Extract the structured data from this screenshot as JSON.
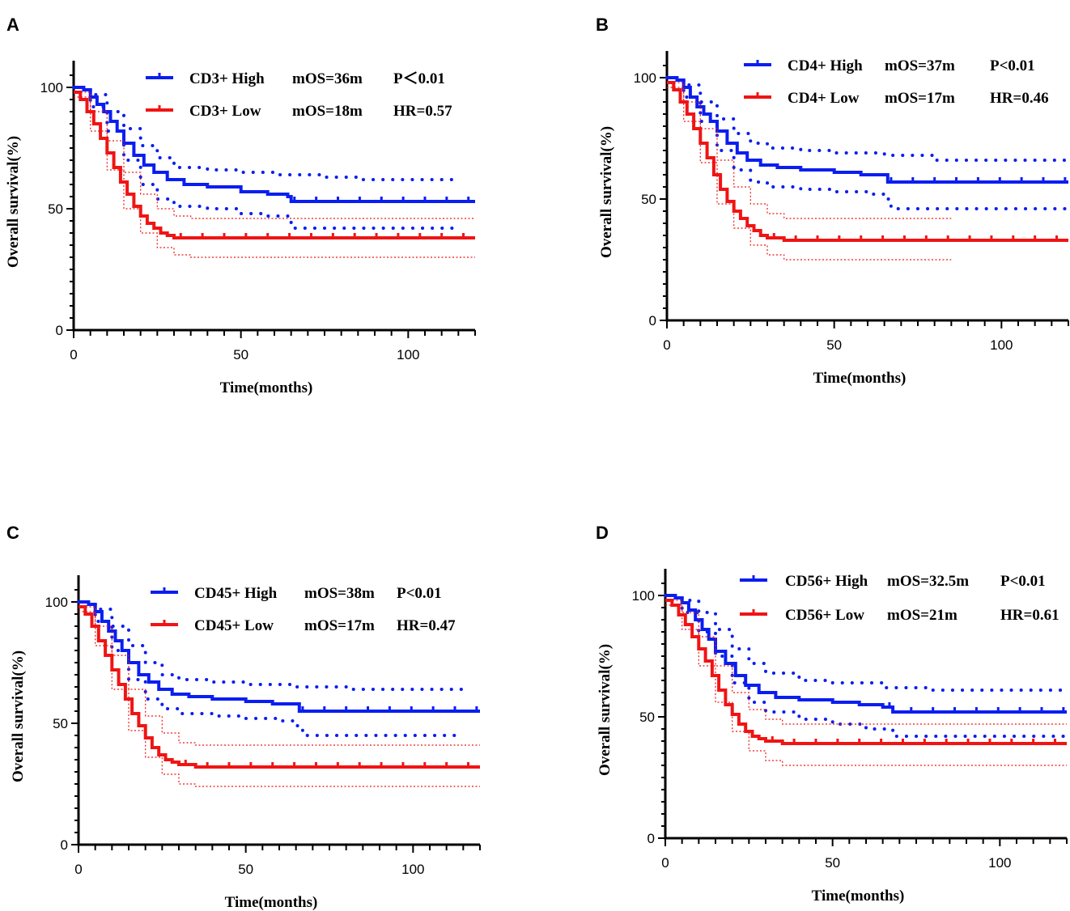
{
  "colors": {
    "high": "#0a1ef0",
    "low": "#f01414",
    "axis": "#000000"
  },
  "chart_data": [
    {
      "type": "line",
      "panel_label": "A",
      "xlabel": "Time(months)",
      "ylabel": "Overall survival(%)",
      "xlim": [
        0,
        120
      ],
      "ylim": [
        0,
        110
      ],
      "xticks": [
        "0",
        "50",
        "100"
      ],
      "xtick_values": [
        0,
        50,
        100
      ],
      "yticks": [
        "0",
        "50",
        "100"
      ],
      "ytick_values": [
        0,
        50,
        100
      ],
      "legend": [
        {
          "group": "high",
          "label": "CD3+ High",
          "stat1": "mOS=36m",
          "stat2": "P＜0.01"
        },
        {
          "group": "low",
          "label": "CD3+ Low",
          "stat1": "mOS=18m",
          "stat2": "HR=0.57"
        }
      ],
      "series": [
        {
          "name": "CD3+ High",
          "group": "high",
          "style": "solid",
          "x": [
            0,
            3,
            5,
            7,
            9,
            11,
            13,
            15,
            18,
            21,
            24,
            28,
            33,
            40,
            50,
            58,
            64,
            65,
            120
          ],
          "y": [
            100,
            99,
            96,
            93,
            90,
            86,
            82,
            77,
            72,
            68,
            65,
            62,
            60,
            59,
            57,
            56,
            55,
            53,
            53
          ]
        },
        {
          "name": "CD3+ High upper",
          "group": "high",
          "style": "ci",
          "x": [
            0,
            5,
            10,
            15,
            20,
            25,
            30,
            40,
            50,
            60,
            75,
            85,
            115
          ],
          "y": [
            100,
            97,
            90,
            83,
            76,
            71,
            67,
            66,
            65,
            64,
            63,
            62,
            62
          ]
        },
        {
          "name": "CD3+ High lower",
          "group": "high",
          "style": "ci",
          "x": [
            0,
            5,
            10,
            15,
            20,
            25,
            30,
            40,
            50,
            58,
            64,
            65,
            85,
            115
          ],
          "y": [
            100,
            92,
            82,
            70,
            60,
            54,
            51,
            50,
            48,
            47,
            46,
            42,
            42,
            42
          ]
        },
        {
          "name": "CD3+ Low",
          "group": "low",
          "style": "solid",
          "x": [
            0,
            2,
            4,
            6,
            8,
            10,
            12,
            14,
            16,
            18,
            20,
            22,
            24,
            26,
            28,
            30,
            35,
            120
          ],
          "y": [
            98,
            95,
            90,
            85,
            79,
            73,
            67,
            61,
            56,
            51,
            47,
            44,
            42,
            40,
            39,
            38,
            38,
            38
          ]
        },
        {
          "name": "CD3+ Low upper",
          "group": "low",
          "style": "ci",
          "x": [
            0,
            5,
            10,
            15,
            20,
            25,
            30,
            35,
            120
          ],
          "y": [
            98,
            90,
            78,
            65,
            56,
            50,
            47,
            46,
            46
          ]
        },
        {
          "name": "CD3+ Low lower",
          "group": "low",
          "style": "ci",
          "x": [
            0,
            5,
            10,
            15,
            20,
            25,
            30,
            35,
            120
          ],
          "y": [
            96,
            82,
            66,
            50,
            40,
            34,
            31,
            30,
            30
          ]
        }
      ]
    },
    {
      "type": "line",
      "panel_label": "B",
      "xlabel": "Time(months)",
      "ylabel": "Overall survival(%)",
      "xlim": [
        0,
        120
      ],
      "ylim": [
        0,
        110
      ],
      "xticks": [
        "0",
        "50",
        "100"
      ],
      "xtick_values": [
        0,
        50,
        100
      ],
      "yticks": [
        "0",
        "50",
        "100"
      ],
      "ytick_values": [
        0,
        50,
        100
      ],
      "legend": [
        {
          "group": "high",
          "label": "CD4+ High",
          "stat1": "mOS=37m",
          "stat2": "P<0.01"
        },
        {
          "group": "low",
          "label": "CD4+ Low",
          "stat1": "mOS=17m",
          "stat2": "HR=0.46"
        }
      ],
      "series": [
        {
          "name": "CD4+ High",
          "group": "high",
          "style": "solid",
          "x": [
            0,
            3,
            5,
            7,
            9,
            11,
            13,
            15,
            18,
            21,
            24,
            28,
            33,
            40,
            50,
            58,
            65,
            66,
            120
          ],
          "y": [
            100,
            99,
            96,
            92,
            88,
            85,
            82,
            78,
            73,
            69,
            66,
            64,
            63,
            62,
            61,
            60,
            60,
            57,
            57
          ]
        },
        {
          "name": "CD4+ High upper",
          "group": "high",
          "style": "ci",
          "x": [
            0,
            5,
            10,
            15,
            20,
            25,
            30,
            40,
            50,
            65,
            80,
            120
          ],
          "y": [
            100,
            97,
            90,
            83,
            77,
            73,
            71,
            70,
            69,
            68,
            66,
            66
          ]
        },
        {
          "name": "CD4+ High lower",
          "group": "high",
          "style": "ci",
          "x": [
            0,
            5,
            10,
            15,
            20,
            25,
            30,
            40,
            50,
            60,
            65,
            67,
            120
          ],
          "y": [
            100,
            92,
            82,
            70,
            62,
            57,
            55,
            54,
            53,
            52,
            50,
            46,
            46
          ]
        },
        {
          "name": "CD4+ Low",
          "group": "low",
          "style": "solid",
          "x": [
            0,
            2,
            4,
            6,
            8,
            10,
            12,
            14,
            16,
            18,
            20,
            22,
            24,
            26,
            28,
            30,
            35,
            120
          ],
          "y": [
            98,
            95,
            90,
            85,
            79,
            73,
            67,
            60,
            54,
            49,
            45,
            42,
            39,
            37,
            35,
            34,
            33,
            33
          ]
        },
        {
          "name": "CD4+ Low upper",
          "group": "low",
          "style": "ci",
          "x": [
            0,
            5,
            10,
            15,
            20,
            25,
            30,
            35,
            85
          ],
          "y": [
            98,
            90,
            79,
            66,
            55,
            48,
            44,
            42,
            42
          ]
        },
        {
          "name": "CD4+ Low lower",
          "group": "low",
          "style": "ci",
          "x": [
            0,
            5,
            10,
            15,
            20,
            25,
            30,
            35,
            85
          ],
          "y": [
            96,
            82,
            65,
            48,
            38,
            31,
            27,
            25,
            25
          ]
        }
      ]
    },
    {
      "type": "line",
      "panel_label": "C",
      "xlabel": "Time(months)",
      "ylabel": "Overall survival(%)",
      "xlim": [
        0,
        120
      ],
      "ylim": [
        0,
        110
      ],
      "xticks": [
        "0",
        "50",
        "100"
      ],
      "xtick_values": [
        0,
        50,
        100
      ],
      "yticks": [
        "0",
        "50",
        "100"
      ],
      "ytick_values": [
        0,
        50,
        100
      ],
      "legend": [
        {
          "group": "high",
          "label": "CD45+ High",
          "stat1": "mOS=38m",
          "stat2": "P<0.01"
        },
        {
          "group": "low",
          "label": "CD45+ Low",
          "stat1": "mOS=17m",
          "stat2": "HR=0.47"
        }
      ],
      "series": [
        {
          "name": "CD45+ High",
          "group": "high",
          "style": "solid",
          "x": [
            0,
            3,
            5,
            7,
            9,
            11,
            13,
            15,
            18,
            21,
            24,
            28,
            33,
            40,
            50,
            58,
            65,
            66,
            120
          ],
          "y": [
            100,
            99,
            96,
            92,
            88,
            84,
            80,
            75,
            70,
            67,
            64,
            62,
            61,
            60,
            59,
            58,
            58,
            55,
            55
          ]
        },
        {
          "name": "CD45+ High upper",
          "group": "high",
          "style": "ci",
          "x": [
            0,
            5,
            10,
            15,
            20,
            25,
            30,
            40,
            50,
            65,
            80,
            115
          ],
          "y": [
            100,
            97,
            90,
            82,
            75,
            70,
            68,
            67,
            66,
            65,
            64,
            64
          ]
        },
        {
          "name": "CD45+ High lower",
          "group": "high",
          "style": "ci",
          "x": [
            0,
            5,
            10,
            15,
            20,
            25,
            30,
            40,
            50,
            60,
            65,
            67,
            115
          ],
          "y": [
            100,
            92,
            80,
            68,
            60,
            56,
            54,
            53,
            52,
            51,
            49,
            45,
            45
          ]
        },
        {
          "name": "CD45+ Low",
          "group": "low",
          "style": "solid",
          "x": [
            0,
            2,
            4,
            6,
            8,
            10,
            12,
            14,
            16,
            18,
            20,
            22,
            24,
            26,
            28,
            30,
            35,
            120
          ],
          "y": [
            98,
            95,
            90,
            84,
            78,
            72,
            66,
            60,
            54,
            49,
            44,
            40,
            37,
            35,
            34,
            33,
            32,
            32
          ]
        },
        {
          "name": "CD45+ Low upper",
          "group": "low",
          "style": "ci",
          "x": [
            0,
            5,
            10,
            15,
            20,
            25,
            30,
            35,
            120
          ],
          "y": [
            98,
            90,
            78,
            64,
            53,
            46,
            42,
            41,
            41
          ]
        },
        {
          "name": "CD45+ Low lower",
          "group": "low",
          "style": "ci",
          "x": [
            0,
            5,
            10,
            15,
            20,
            25,
            30,
            35,
            120
          ],
          "y": [
            96,
            82,
            64,
            47,
            36,
            29,
            25,
            24,
            24
          ]
        }
      ]
    },
    {
      "type": "line",
      "panel_label": "D",
      "xlabel": "Time(months)",
      "ylabel": "Overall survival(%)",
      "xlim": [
        0,
        120
      ],
      "ylim": [
        0,
        110
      ],
      "xticks": [
        "0",
        "50",
        "100"
      ],
      "xtick_values": [
        0,
        50,
        100
      ],
      "yticks": [
        "0",
        "50",
        "100"
      ],
      "ytick_values": [
        0,
        50,
        100
      ],
      "legend": [
        {
          "group": "high",
          "label": "CD56+ High",
          "stat1": "mOS=32.5m",
          "stat2": "P<0.01"
        },
        {
          "group": "low",
          "label": "CD56+ Low",
          "stat1": "mOS=21m",
          "stat2": "HR=0.61"
        }
      ],
      "series": [
        {
          "name": "CD56+ High",
          "group": "high",
          "style": "solid",
          "x": [
            0,
            3,
            5,
            7,
            9,
            11,
            13,
            15,
            18,
            21,
            24,
            28,
            33,
            40,
            50,
            58,
            65,
            68,
            120
          ],
          "y": [
            100,
            99,
            97,
            94,
            90,
            86,
            82,
            77,
            72,
            67,
            63,
            60,
            58,
            57,
            56,
            55,
            54,
            52,
            52
          ]
        },
        {
          "name": "CD56+ High upper",
          "group": "high",
          "style": "ci",
          "x": [
            0,
            5,
            10,
            15,
            20,
            25,
            30,
            40,
            50,
            65,
            80,
            120
          ],
          "y": [
            100,
            98,
            93,
            86,
            78,
            72,
            68,
            65,
            64,
            62,
            61,
            61
          ]
        },
        {
          "name": "CD56+ High lower",
          "group": "high",
          "style": "ci",
          "x": [
            0,
            5,
            10,
            15,
            20,
            25,
            30,
            40,
            50,
            60,
            68,
            120
          ],
          "y": [
            100,
            93,
            85,
            75,
            64,
            56,
            52,
            49,
            47,
            45,
            42,
            42
          ]
        },
        {
          "name": "CD56+ Low",
          "group": "low",
          "style": "solid",
          "x": [
            0,
            2,
            4,
            6,
            8,
            10,
            12,
            14,
            16,
            18,
            20,
            22,
            24,
            26,
            28,
            30,
            35,
            120
          ],
          "y": [
            98,
            96,
            92,
            88,
            83,
            78,
            73,
            67,
            61,
            55,
            51,
            47,
            44,
            42,
            41,
            40,
            39,
            39
          ]
        },
        {
          "name": "CD56+ Low upper",
          "group": "low",
          "style": "ci",
          "x": [
            0,
            5,
            10,
            15,
            20,
            25,
            30,
            35,
            120
          ],
          "y": [
            98,
            93,
            83,
            71,
            60,
            53,
            49,
            47,
            47
          ]
        },
        {
          "name": "CD56+ Low lower",
          "group": "low",
          "style": "ci",
          "x": [
            0,
            5,
            10,
            15,
            20,
            25,
            30,
            35,
            120
          ],
          "y": [
            96,
            86,
            71,
            56,
            44,
            36,
            32,
            30,
            30
          ]
        }
      ]
    }
  ]
}
